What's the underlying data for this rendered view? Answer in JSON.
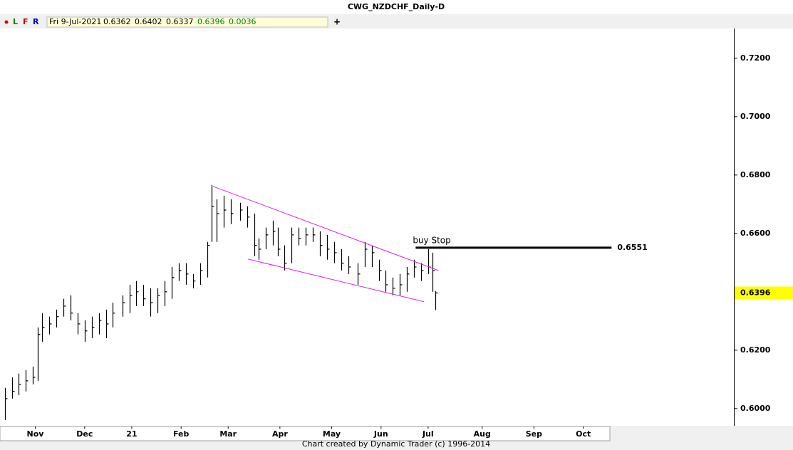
{
  "title": "CWG_NZDCHF_Daily-D",
  "toolbar": {
    "buttons": [
      "L",
      "F",
      "R"
    ],
    "date": "Fri 9-Jul-2021",
    "open": 0.6362,
    "high": 0.6402,
    "low": 0.6337,
    "close": 0.6396,
    "change": 0.0036,
    "add": "+"
  },
  "footer": "Chart created by Dynamic Trader  (c) 1996-2014",
  "chart_data": {
    "type": "ohlc",
    "x": [
      2,
      5,
      8,
      11,
      14,
      16,
      18,
      21,
      24,
      27,
      30,
      33,
      36,
      39,
      42,
      45,
      48,
      52,
      55,
      58,
      61,
      64,
      67,
      70,
      73,
      76,
      79,
      82,
      85,
      88,
      90,
      92,
      95,
      98,
      102,
      105,
      108,
      110,
      113,
      116,
      118,
      121,
      124,
      127,
      130,
      133,
      136,
      139,
      142,
      145,
      148,
      152,
      155,
      158,
      161,
      164,
      167,
      170,
      173,
      176,
      179,
      182,
      184,
      185
    ],
    "high": [
      0.6071,
      0.6107,
      0.612,
      0.6132,
      0.6144,
      0.6278,
      0.6327,
      0.6315,
      0.6339,
      0.6376,
      0.6388,
      0.6327,
      0.6302,
      0.6315,
      0.6327,
      0.6339,
      0.6363,
      0.6388,
      0.6424,
      0.6437,
      0.6424,
      0.6412,
      0.6412,
      0.6437,
      0.6485,
      0.6498,
      0.6498,
      0.6461,
      0.6498,
      0.6571,
      0.6766,
      0.6717,
      0.6729,
      0.6717,
      0.6705,
      0.6693,
      0.6668,
      0.6583,
      0.662,
      0.6644,
      0.662,
      0.6559,
      0.662,
      0.662,
      0.662,
      0.662,
      0.6607,
      0.6595,
      0.6571,
      0.6546,
      0.6522,
      0.6498,
      0.6571,
      0.6559,
      0.651,
      0.6473,
      0.6449,
      0.6461,
      0.6485,
      0.651,
      0.6498,
      0.6546,
      0.6534,
      0.6402
    ],
    "low": [
      0.5961,
      0.6034,
      0.6046,
      0.6059,
      0.6083,
      0.6095,
      0.6229,
      0.6254,
      0.6278,
      0.6315,
      0.6302,
      0.6254,
      0.6229,
      0.6241,
      0.6254,
      0.6241,
      0.6278,
      0.6315,
      0.6327,
      0.6351,
      0.6351,
      0.6315,
      0.6327,
      0.6351,
      0.6376,
      0.6437,
      0.6424,
      0.6412,
      0.6424,
      0.6449,
      0.6571,
      0.6571,
      0.662,
      0.6632,
      0.6644,
      0.662,
      0.6522,
      0.651,
      0.6546,
      0.6559,
      0.6522,
      0.6473,
      0.6498,
      0.6559,
      0.6559,
      0.6571,
      0.6522,
      0.651,
      0.6498,
      0.6473,
      0.6461,
      0.6424,
      0.6485,
      0.6485,
      0.6437,
      0.64,
      0.6388,
      0.6388,
      0.64,
      0.6449,
      0.6437,
      0.6461,
      0.64,
      0.6337
    ],
    "close": [
      0.6034,
      0.6059,
      0.6083,
      0.6095,
      0.6107,
      0.6254,
      0.6278,
      0.629,
      0.6315,
      0.6351,
      0.6327,
      0.629,
      0.6266,
      0.6278,
      0.6302,
      0.629,
      0.6327,
      0.6363,
      0.6388,
      0.64,
      0.6376,
      0.6363,
      0.6388,
      0.64,
      0.6449,
      0.6473,
      0.6461,
      0.6437,
      0.6473,
      0.6559,
      0.6693,
      0.6668,
      0.668,
      0.6668,
      0.668,
      0.6656,
      0.6559,
      0.6546,
      0.6595,
      0.6607,
      0.6546,
      0.6498,
      0.6595,
      0.6583,
      0.6595,
      0.6595,
      0.6559,
      0.6546,
      0.6534,
      0.6498,
      0.6485,
      0.6461,
      0.6546,
      0.6534,
      0.6473,
      0.6424,
      0.6412,
      0.6424,
      0.6461,
      0.6485,
      0.6473,
      0.6485,
      0.6473,
      0.6396
    ],
    "color": "#000000",
    "xlim": [
      0,
      312
    ],
    "xticks": [
      {
        "value": 15,
        "label": "Nov"
      },
      {
        "value": 36,
        "label": "Dec"
      },
      {
        "value": 56,
        "label": "21"
      },
      {
        "value": 77,
        "label": "Feb"
      },
      {
        "value": 97,
        "label": "Mar"
      },
      {
        "value": 119,
        "label": "Apr"
      },
      {
        "value": 141,
        "label": "May"
      },
      {
        "value": 162,
        "label": "Jun"
      },
      {
        "value": 182,
        "label": "Jul"
      },
      {
        "value": 205,
        "label": "Aug"
      },
      {
        "value": 227,
        "label": "Sep"
      },
      {
        "value": 248,
        "label": "Oct"
      }
    ],
    "ylim": [
      0.5941,
      0.7302
    ],
    "yticks": [
      {
        "value": 0.6,
        "label": "0.6000"
      },
      {
        "value": 0.62,
        "label": "0.6200"
      },
      {
        "value": 0.64,
        "label": "0.6400"
      },
      {
        "value": 0.66,
        "label": "0.6600"
      },
      {
        "value": 0.68,
        "label": "0.6800"
      },
      {
        "value": 0.7,
        "label": "0.7000"
      },
      {
        "value": 0.72,
        "label": "0.7200"
      }
    ],
    "trendlines": [
      {
        "x": [
          90.6,
          186.4
        ],
        "values": [
          0.6761,
          0.6473
        ],
        "color": "#e020e0"
      },
      {
        "x": [
          105.5,
          180.3
        ],
        "values": [
          0.6512,
          0.6366
        ],
        "color": "#e020e0"
      }
    ],
    "level": {
      "x": [
        176.7,
        260
      ],
      "value": 0.6551,
      "annotation": "buy Stop",
      "color": "#000000"
    },
    "last_price": 0.6396,
    "last_price_color": "#ffff00"
  }
}
